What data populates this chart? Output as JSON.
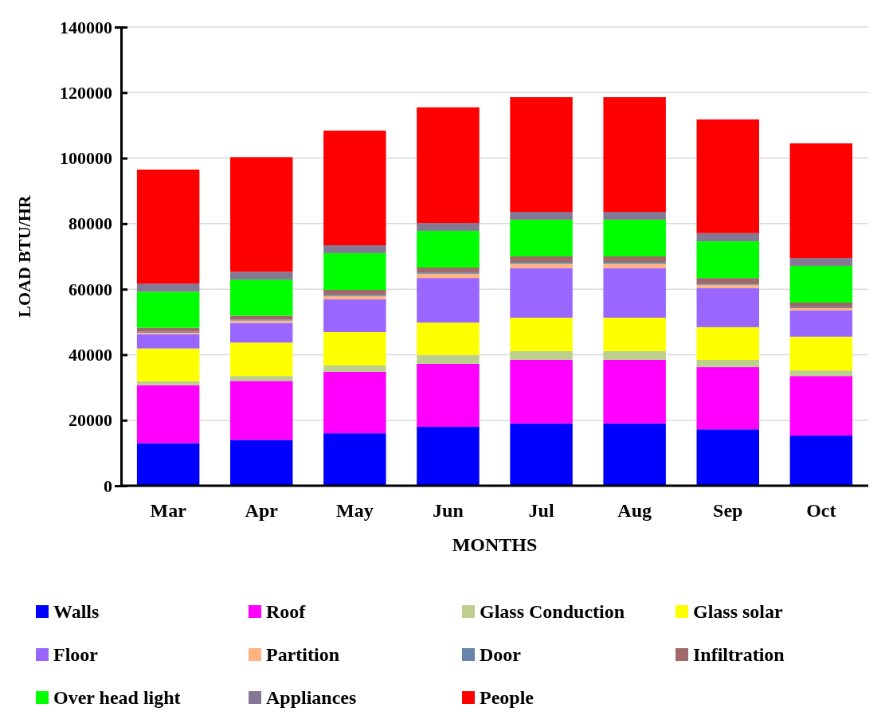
{
  "chart_data": {
    "type": "bar",
    "stacked": true,
    "xlabel": "MONTHS",
    "ylabel": "LOAD BTU/HR",
    "categories": [
      "Mar",
      "Apr",
      "May",
      "Jun",
      "Jul",
      "Aug",
      "Sep",
      "Oct"
    ],
    "ylim": [
      0,
      140000
    ],
    "yticks": [
      0,
      20000,
      40000,
      60000,
      80000,
      100000,
      120000,
      140000
    ],
    "grid": "y",
    "legend": "bottom",
    "series": [
      {
        "name": "Walls",
        "color": "#0000ff",
        "values": [
          13000,
          14000,
          16000,
          18000,
          19000,
          19000,
          17200,
          15300
        ]
      },
      {
        "name": "Roof",
        "color": "#ff00ff",
        "values": [
          17700,
          18000,
          18800,
          19200,
          19400,
          19400,
          19000,
          18200
        ]
      },
      {
        "name": "Glass Conduction",
        "color": "#bccf8c",
        "values": [
          1200,
          1500,
          1900,
          2700,
          2700,
          2700,
          2200,
          1700
        ]
      },
      {
        "name": "Glass solar",
        "color": "#ffff00",
        "values": [
          10000,
          10200,
          10200,
          9900,
          10200,
          10200,
          10000,
          10300
        ]
      },
      {
        "name": "Floor",
        "color": "#9966ff",
        "values": [
          4300,
          6000,
          10000,
          13600,
          15100,
          15100,
          11900,
          8000
        ]
      },
      {
        "name": "Partition",
        "color": "#ffb380",
        "values": [
          500,
          700,
          1000,
          1300,
          1400,
          1400,
          1000,
          700
        ]
      },
      {
        "name": "Door",
        "color": "#6685a8",
        "values": [
          300,
          300,
          400,
          400,
          500,
          500,
          400,
          300
        ]
      },
      {
        "name": "Infiltration",
        "color": "#a06868",
        "values": [
          1200,
          1200,
          1500,
          1500,
          1700,
          1700,
          1700,
          1400
        ]
      },
      {
        "name": "Over head light",
        "color": "#00ff00",
        "values": [
          11000,
          11000,
          11200,
          11200,
          11200,
          11200,
          11200,
          11200
        ]
      },
      {
        "name": "Appliances",
        "color": "#847894",
        "values": [
          2500,
          2400,
          2400,
          2400,
          2400,
          2400,
          2500,
          2400
        ]
      },
      {
        "name": "People",
        "color": "#ff0000",
        "values": [
          34800,
          35000,
          35000,
          35300,
          35000,
          35000,
          34700,
          35000
        ]
      }
    ]
  }
}
